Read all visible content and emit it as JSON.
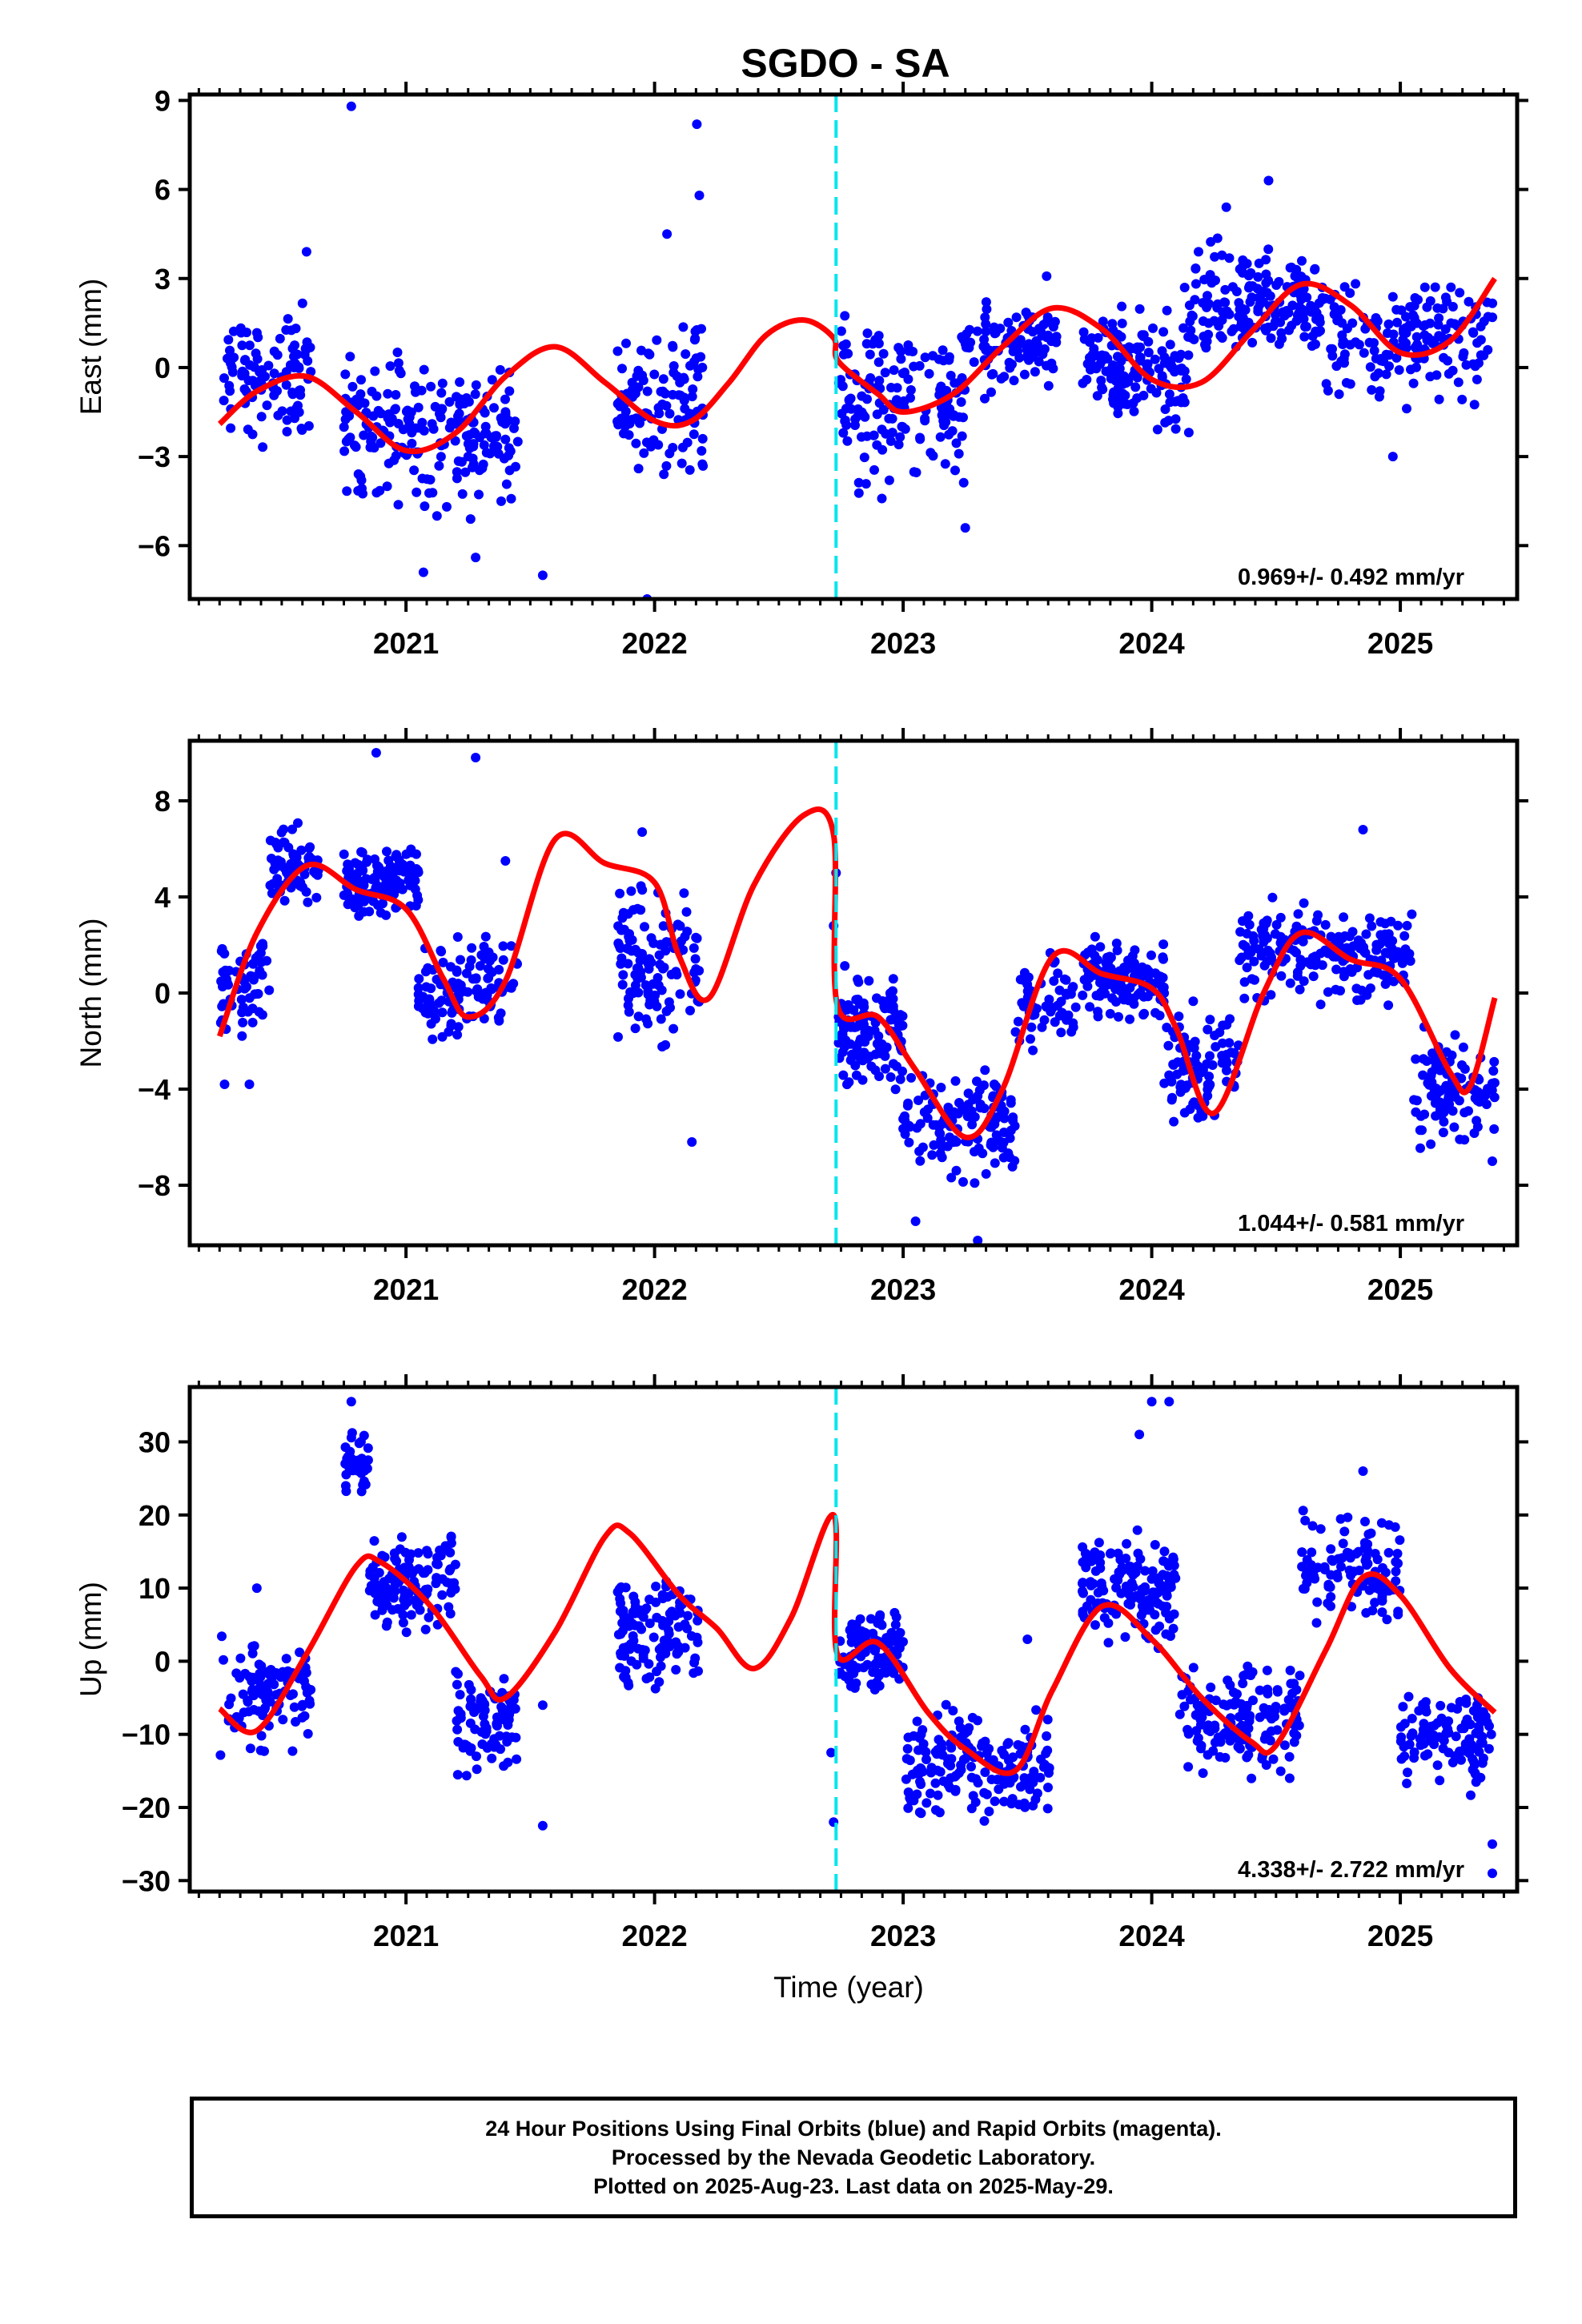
{
  "title": "SGDO - SA",
  "xlabel": "Time (year)",
  "colors": {
    "final": "#0000ff",
    "fit": "#ff0000",
    "marker": "#00e5ee"
  },
  "footer": {
    "line1": "24 Hour Positions Using Final Orbits (blue) and Rapid Orbits (magenta).",
    "line2": "Processed by the Nevada Geodetic Laboratory.",
    "line3": "Plotted on 2025-Aug-23. Last data on 2025-May-29."
  },
  "chart_data": [
    {
      "type": "scatter",
      "name": "east",
      "ylabel": "East (mm)",
      "rate_label": "0.969+/- 0.492 mm/yr",
      "xlim": [
        2020.13,
        2025.47
      ],
      "ylim": [
        -7.8,
        9.2
      ],
      "xticks": [
        2021,
        2022,
        2023,
        2024,
        2025
      ],
      "yticks": [
        -6,
        -3,
        0,
        3,
        6,
        9
      ],
      "marker_x": 2022.73,
      "fit": {
        "x": [
          2020.25,
          2020.4,
          2020.6,
          2020.8,
          2021.0,
          2021.2,
          2021.4,
          2021.6,
          2021.8,
          2022.0,
          2022.15,
          2022.3,
          2022.45,
          2022.6,
          2022.72,
          2022.74,
          2022.9,
          2023.0,
          2023.2,
          2023.4,
          2023.6,
          2023.8,
          2024.0,
          2024.2,
          2024.4,
          2024.6,
          2024.8,
          2025.0,
          2025.2,
          2025.38
        ],
        "y": [
          -1.9,
          -0.8,
          -0.3,
          -1.5,
          -2.8,
          -2.2,
          -0.3,
          0.7,
          -0.5,
          -1.8,
          -1.8,
          -0.5,
          1.1,
          1.6,
          1.0,
          0.2,
          -0.9,
          -1.5,
          -0.9,
          0.7,
          2.0,
          1.3,
          -0.4,
          -0.5,
          1.2,
          2.8,
          2.1,
          0.5,
          0.9,
          3.0
        ]
      },
      "clusters": [
        {
          "x0": 2020.25,
          "x1": 2020.62,
          "y0": -3.3,
          "y1": 3.0,
          "n": 100
        },
        {
          "x0": 2020.75,
          "x1": 2021.45,
          "y0": -5.6,
          "y1": 1.2,
          "n": 220
        },
        {
          "x0": 2021.85,
          "x1": 2022.2,
          "y0": -4.6,
          "y1": 2.2,
          "n": 110
        },
        {
          "x0": 2022.74,
          "x1": 2023.25,
          "y0": -4.8,
          "y1": 2.5,
          "n": 160
        },
        {
          "x0": 2023.25,
          "x1": 2023.62,
          "y0": -1.5,
          "y1": 3.2,
          "n": 100
        },
        {
          "x0": 2023.72,
          "x1": 2024.15,
          "y0": -2.8,
          "y1": 3.0,
          "n": 150
        },
        {
          "x0": 2024.15,
          "x1": 2024.7,
          "y0": -0.5,
          "y1": 4.8,
          "n": 170
        },
        {
          "x0": 2024.7,
          "x1": 2025.38,
          "y0": -1.8,
          "y1": 3.5,
          "n": 170
        }
      ],
      "outliers": {
        "x": [
          2020.78,
          2022.17,
          2022.18,
          2022.05,
          2021.55,
          2021.97,
          2021.07,
          2021.28,
          2024.47,
          2024.3,
          2023.25,
          2024.97,
          2020.6
        ],
        "y": [
          8.8,
          8.2,
          5.8,
          4.5,
          -7.0,
          -7.8,
          -6.9,
          -6.4,
          6.3,
          5.4,
          -5.4,
          -3.0,
          3.9
        ]
      }
    },
    {
      "type": "scatter",
      "name": "north",
      "ylabel": "North (mm)",
      "rate_label": "1.044+/- 0.581 mm/yr",
      "xlim": [
        2020.13,
        2025.47
      ],
      "ylim": [
        -10.5,
        10.5
      ],
      "xticks": [
        2021,
        2022,
        2023,
        2024,
        2025
      ],
      "yticks": [
        -8,
        -4,
        0,
        4,
        8
      ],
      "marker_x": 2022.73,
      "fit": {
        "x": [
          2020.25,
          2020.4,
          2020.6,
          2020.8,
          2021.0,
          2021.15,
          2021.25,
          2021.4,
          2021.6,
          2021.8,
          2022.0,
          2022.1,
          2022.22,
          2022.4,
          2022.6,
          2022.72,
          2022.735,
          2022.9,
          2023.05,
          2023.25,
          2023.4,
          2023.6,
          2023.8,
          2024.0,
          2024.1,
          2024.25,
          2024.45,
          2024.6,
          2024.8,
          2025.0,
          2025.2,
          2025.28,
          2025.38
        ],
        "y": [
          -1.8,
          2.5,
          5.3,
          4.3,
          3.5,
          0.6,
          -1.0,
          0.5,
          6.4,
          5.4,
          4.6,
          1.5,
          -0.2,
          4.5,
          7.4,
          6.6,
          -0.5,
          -1.0,
          -3.2,
          -6.0,
          -4.0,
          1.5,
          0.8,
          0.2,
          -1.5,
          -5.0,
          0.0,
          2.5,
          1.4,
          0.6,
          -3.3,
          -3.9,
          -0.2
        ]
      },
      "clusters": [
        {
          "x0": 2020.25,
          "x1": 2020.45,
          "y0": -2.5,
          "y1": 3.5,
          "n": 60
        },
        {
          "x0": 2020.45,
          "x1": 2020.65,
          "y0": 3.0,
          "y1": 7.5,
          "n": 70
        },
        {
          "x0": 2020.75,
          "x1": 2021.05,
          "y0": 2.5,
          "y1": 6.5,
          "n": 130
        },
        {
          "x0": 2021.05,
          "x1": 2021.25,
          "y0": -3.0,
          "y1": 3.0,
          "n": 70
        },
        {
          "x0": 2021.25,
          "x1": 2021.45,
          "y0": -2.0,
          "y1": 3.0,
          "n": 50
        },
        {
          "x0": 2021.85,
          "x1": 2022.18,
          "y0": -3.5,
          "y1": 6.0,
          "n": 120
        },
        {
          "x0": 2022.74,
          "x1": 2023.0,
          "y0": -4.5,
          "y1": 1.5,
          "n": 130
        },
        {
          "x0": 2023.0,
          "x1": 2023.45,
          "y0": -8.5,
          "y1": -2.5,
          "n": 130
        },
        {
          "x0": 2023.45,
          "x1": 2023.7,
          "y0": -3.0,
          "y1": 2.5,
          "n": 60
        },
        {
          "x0": 2023.72,
          "x1": 2024.05,
          "y0": -2.0,
          "y1": 3.0,
          "n": 130
        },
        {
          "x0": 2024.05,
          "x1": 2024.35,
          "y0": -6.0,
          "y1": 0.0,
          "n": 90
        },
        {
          "x0": 2024.35,
          "x1": 2024.7,
          "y0": -1.0,
          "y1": 4.5,
          "n": 100
        },
        {
          "x0": 2024.7,
          "x1": 2025.05,
          "y0": -1.0,
          "y1": 4.0,
          "n": 100
        },
        {
          "x0": 2025.05,
          "x1": 2025.38,
          "y0": -7.0,
          "y1": -1.0,
          "n": 110
        }
      ],
      "outliers": {
        "x": [
          2020.88,
          2021.28,
          2022.73,
          2022.72,
          2023.05,
          2023.3,
          2024.85,
          2025.37,
          2020.27,
          2020.37,
          2022.15,
          2021.4,
          2021.95
        ],
        "y": [
          10.0,
          9.8,
          5.0,
          2.8,
          -9.5,
          -10.3,
          6.8,
          -7.0,
          -3.8,
          -3.8,
          -6.2,
          5.5,
          6.7
        ]
      }
    },
    {
      "type": "scatter",
      "name": "up",
      "ylabel": "Up (mm)",
      "rate_label": "4.338+/- 2.722 mm/yr",
      "xlim": [
        2020.13,
        2025.47
      ],
      "ylim": [
        -31.5,
        37.5
      ],
      "xticks": [
        2021,
        2022,
        2023,
        2024,
        2025
      ],
      "yticks": [
        -30,
        -20,
        -10,
        0,
        10,
        20,
        30
      ],
      "marker_x": 2022.73,
      "fit": {
        "x": [
          2020.25,
          2020.4,
          2020.6,
          2020.8,
          2020.9,
          2021.1,
          2021.3,
          2021.4,
          2021.6,
          2021.8,
          2021.9,
          2022.1,
          2022.25,
          2022.4,
          2022.55,
          2022.72,
          2022.735,
          2022.9,
          2023.1,
          2023.25,
          2023.45,
          2023.6,
          2023.8,
          2024.0,
          2024.2,
          2024.4,
          2024.5,
          2024.7,
          2024.85,
          2025.0,
          2025.2,
          2025.38
        ],
        "y": [
          -6.5,
          -9.5,
          1.0,
          13.0,
          13.5,
          7.5,
          -2.0,
          -5.0,
          4.0,
          17.0,
          17.5,
          9.0,
          4.5,
          -1.0,
          6.0,
          20.0,
          1.0,
          2.5,
          -7.0,
          -12.0,
          -15.0,
          -4.0,
          7.5,
          3.0,
          -5.0,
          -11.0,
          -11.5,
          1.5,
          11.5,
          9.0,
          -1.0,
          -7.0
        ]
      },
      "clusters": [
        {
          "x0": 2020.25,
          "x1": 2020.62,
          "y0": -14.0,
          "y1": 6.0,
          "n": 100
        },
        {
          "x0": 2020.75,
          "x1": 2020.85,
          "y0": 20.0,
          "y1": 33.0,
          "n": 40
        },
        {
          "x0": 2020.85,
          "x1": 2021.2,
          "y0": 2.0,
          "y1": 20.0,
          "n": 130
        },
        {
          "x0": 2021.2,
          "x1": 2021.45,
          "y0": -18.0,
          "y1": 2.0,
          "n": 90
        },
        {
          "x0": 2021.85,
          "x1": 2022.18,
          "y0": -6.0,
          "y1": 15.0,
          "n": 120
        },
        {
          "x0": 2022.74,
          "x1": 2023.0,
          "y0": -6.0,
          "y1": 8.0,
          "n": 110
        },
        {
          "x0": 2023.0,
          "x1": 2023.6,
          "y0": -24.0,
          "y1": -5.0,
          "n": 180
        },
        {
          "x0": 2023.72,
          "x1": 2024.1,
          "y0": 0.0,
          "y1": 20.0,
          "n": 140
        },
        {
          "x0": 2024.1,
          "x1": 2024.6,
          "y0": -18.0,
          "y1": 2.0,
          "n": 150
        },
        {
          "x0": 2024.6,
          "x1": 2025.0,
          "y0": 4.0,
          "y1": 22.0,
          "n": 110
        },
        {
          "x0": 2025.0,
          "x1": 2025.38,
          "y0": -20.0,
          "y1": 0.0,
          "n": 110
        }
      ],
      "outliers": {
        "x": [
          2020.78,
          2024.0,
          2024.07,
          2023.95,
          2024.85,
          2025.37,
          2025.37,
          2022.72,
          2022.71,
          2021.55,
          2021.55,
          2023.5,
          2020.4
        ],
        "y": [
          35.5,
          35.5,
          35.5,
          31.0,
          26.0,
          -29.0,
          -25.0,
          -22.0,
          -12.5,
          -22.5,
          -6.0,
          3.0,
          10.0
        ]
      }
    }
  ]
}
